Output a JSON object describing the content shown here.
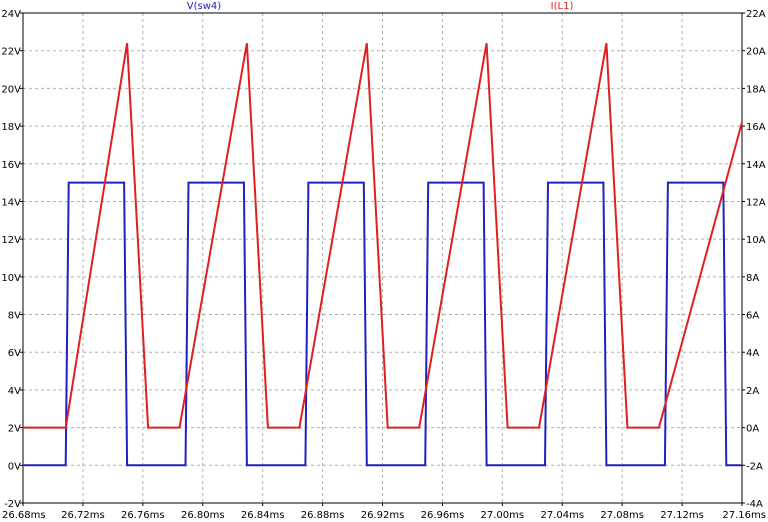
{
  "chart_data": {
    "type": "line",
    "title": "",
    "legend": [
      {
        "label": "V(sw4)",
        "color": "#2020c0"
      },
      {
        "label": "I(L1)",
        "color": "#e02020"
      }
    ],
    "x_axis": {
      "unit": "ms",
      "range": [
        26.68,
        27.16
      ],
      "ticks": [
        "26.68ms",
        "26.72ms",
        "26.76ms",
        "26.80ms",
        "26.84ms",
        "26.88ms",
        "26.92ms",
        "26.96ms",
        "27.00ms",
        "27.04ms",
        "27.08ms",
        "27.12ms",
        "27.16ms"
      ]
    },
    "y_left": {
      "unit": "V",
      "range": [
        -2,
        24
      ],
      "ticks": [
        "-2V",
        "0V",
        "2V",
        "4V",
        "6V",
        "8V",
        "10V",
        "12V",
        "14V",
        "16V",
        "18V",
        "20V",
        "22V",
        "24V"
      ]
    },
    "y_right": {
      "unit": "A",
      "range": [
        -4,
        22
      ],
      "ticks": [
        "-4A",
        "-2A",
        "0A",
        "2A",
        "4A",
        "6A",
        "8A",
        "10A",
        "12A",
        "14A",
        "16A",
        "18A",
        "20A",
        "22A"
      ]
    },
    "grid": true,
    "series": [
      {
        "name": "V(sw4)",
        "axis": "left",
        "color": "#2020c0",
        "x": [
          26.68,
          26.7085,
          26.7105,
          26.7475,
          26.7495,
          26.7805,
          26.7885,
          26.7905,
          26.8275,
          26.8295,
          26.8605,
          26.8685,
          26.8705,
          26.9075,
          26.9095,
          26.9405,
          26.9485,
          26.9505,
          26.9875,
          26.9895,
          27.0205,
          27.0285,
          27.0305,
          27.0675,
          27.0695,
          27.1005,
          27.1085,
          27.1105,
          27.1475,
          27.1495,
          27.16
        ],
        "y": [
          0,
          0,
          15,
          15,
          0,
          0,
          0,
          15,
          15,
          0,
          0,
          0,
          15,
          15,
          0,
          0,
          0,
          15,
          15,
          0,
          0,
          0,
          15,
          15,
          0,
          0,
          0,
          15,
          15,
          0,
          0
        ]
      },
      {
        "name": "I(L1)",
        "axis": "right",
        "color": "#e02020",
        "x": [
          26.68,
          26.7085,
          26.7495,
          26.7635,
          26.7845,
          26.8295,
          26.8435,
          26.8645,
          26.9095,
          26.9235,
          26.9445,
          26.9895,
          27.0035,
          27.0245,
          27.0695,
          27.0835,
          27.1045,
          27.16
        ],
        "y": [
          0,
          0,
          20.4,
          0,
          0,
          20.4,
          0,
          0,
          20.4,
          0,
          0,
          20.4,
          0,
          0,
          20.4,
          0,
          0,
          16.2
        ]
      }
    ]
  }
}
